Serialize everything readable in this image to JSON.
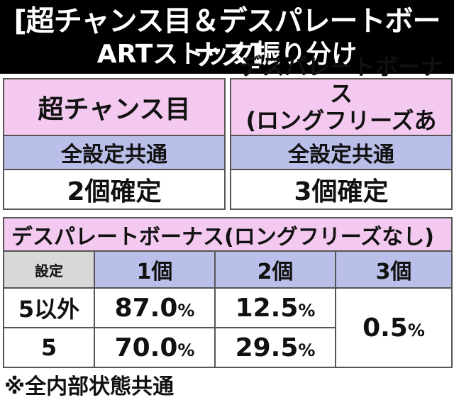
{
  "header": {
    "title": "[超チャンス目＆デスパレートボーナス]",
    "subtitle": "ARTストック振り分け"
  },
  "top_left": {
    "heading": "超チャンス目",
    "setting": "全設定共通",
    "result": "2個確定"
  },
  "top_right": {
    "heading_line1": "デスパレートボーナス",
    "heading_line2": "(ロングフリーズあり)",
    "setting": "全設定共通",
    "result": "3個確定"
  },
  "bottom": {
    "title": "デスパレートボーナス(ロングフリーズなし)",
    "columns": [
      "設定",
      "1個",
      "2個",
      "3個"
    ],
    "rows": [
      {
        "setting": "5以外",
        "c1": "87.0",
        "c2": "12.5"
      },
      {
        "setting": "5",
        "c1": "70.0",
        "c2": "29.5"
      }
    ],
    "c3_shared": "0.5",
    "percent": "%"
  },
  "footnote": "※全内部状態共通",
  "colors": {
    "pink": "#f4c9f0",
    "lavender": "#b9bfe8",
    "gray": "#d8d8d8",
    "black": "#000000"
  }
}
